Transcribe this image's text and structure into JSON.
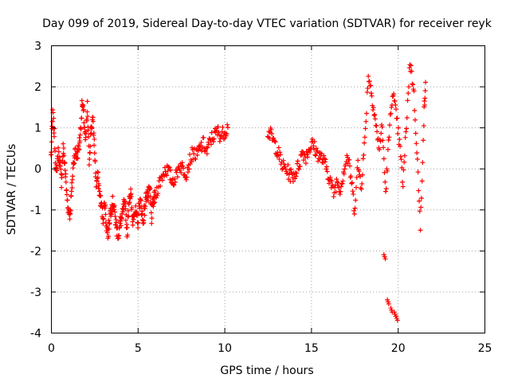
{
  "chart_data": {
    "type": "scatter",
    "title": "Day 099 of 2019, Sidereal Day-to-day VTEC variation (SDTVAR) for receiver reyk",
    "xlabel": "GPS time / hours",
    "ylabel": "SDTVAR / TECUs",
    "xlim": [
      0,
      25
    ],
    "ylim": [
      -4,
      3
    ],
    "xticks": [
      "0",
      "5",
      "10",
      "15",
      "20",
      "25"
    ],
    "yticks": [
      "-4",
      "-3",
      "-2",
      "-1",
      "0",
      "1",
      "2",
      "3"
    ],
    "grid": true,
    "marker": "+",
    "color": "#ff0000",
    "series": [
      {
        "name": "SDTVAR",
        "x": [
          0.0,
          0.1,
          0.2,
          0.3,
          0.4,
          0.5,
          0.6,
          0.7,
          0.8,
          0.9,
          1.0,
          1.1,
          1.2,
          1.3,
          1.4,
          1.5,
          1.6,
          1.7,
          1.8,
          1.9,
          2.0,
          2.1,
          2.2,
          2.3,
          2.4,
          2.5,
          2.6,
          2.7,
          2.8,
          2.9,
          3.0,
          3.1,
          3.2,
          3.3,
          3.4,
          3.5,
          3.6,
          3.7,
          3.8,
          3.9,
          4.0,
          4.1,
          4.2,
          4.3,
          4.4,
          4.5,
          4.6,
          4.7,
          4.8,
          4.9,
          5.0,
          5.1,
          5.2,
          5.3,
          5.4,
          5.5,
          5.6,
          5.7,
          5.8,
          5.9,
          6.0,
          6.2,
          6.4,
          6.6,
          6.8,
          7.0,
          7.2,
          7.4,
          7.6,
          7.8,
          8.0,
          8.2,
          8.4,
          8.6,
          8.8,
          9.0,
          9.2,
          9.4,
          9.6,
          9.8,
          10.0,
          10.2,
          12.5,
          12.7,
          12.9,
          13.1,
          13.3,
          13.5,
          13.7,
          13.9,
          14.1,
          14.3,
          14.5,
          14.7,
          14.9,
          15.1,
          15.3,
          15.5,
          15.7,
          15.9,
          16.1,
          16.3,
          16.5,
          16.7,
          16.9,
          17.1,
          17.3,
          17.5,
          17.7,
          17.9,
          18.1,
          18.3,
          18.5,
          18.7,
          18.9,
          19.1,
          19.3,
          19.5,
          19.7,
          19.9,
          20.1,
          20.3,
          20.5,
          20.7,
          20.9,
          21.1,
          21.3,
          21.5,
          21.6
        ],
        "y": [
          0.3,
          1.3,
          0.8,
          -0.2,
          0.4,
          0.2,
          -0.3,
          0.5,
          0.1,
          -0.6,
          -1.0,
          -1.1,
          -0.5,
          0.2,
          0.4,
          0.3,
          0.5,
          0.9,
          1.6,
          1.2,
          0.6,
          1.5,
          0.2,
          0.9,
          1.2,
          0.6,
          -0.4,
          -0.2,
          -0.6,
          -0.9,
          -1.2,
          -0.8,
          -1.4,
          -1.6,
          -1.1,
          -0.9,
          -0.8,
          -1.2,
          -1.5,
          -1.6,
          -1.3,
          -1.2,
          -0.9,
          -1.0,
          -1.6,
          -0.7,
          -0.6,
          -1.3,
          -1.0,
          -1.1,
          -1.4,
          -0.8,
          -0.9,
          -1.3,
          -1.0,
          -0.6,
          -0.7,
          -0.5,
          -1.2,
          -0.8,
          -0.7,
          -0.4,
          -0.2,
          0.0,
          -0.1,
          -0.3,
          -0.2,
          0.1,
          0.0,
          -0.1,
          0.2,
          0.4,
          0.3,
          0.5,
          0.6,
          0.4,
          0.7,
          0.8,
          0.9,
          0.8,
          0.9,
          1.0,
          0.9,
          0.8,
          0.6,
          0.4,
          0.1,
          0.0,
          -0.1,
          -0.2,
          -0.1,
          0.1,
          0.4,
          0.3,
          0.5,
          0.6,
          0.4,
          0.3,
          0.2,
          0.0,
          -0.3,
          -0.6,
          -0.3,
          -0.5,
          0.0,
          0.3,
          -0.2,
          -1.0,
          0.1,
          -0.4,
          0.7,
          2.3,
          1.8,
          1.2,
          0.5,
          1.0,
          -0.6,
          0.8,
          1.9,
          1.3,
          0.6,
          -0.4,
          1.1,
          2.6,
          2.0,
          0.5,
          -1.5,
          1.2,
          2.1
        ],
        "outliers": {
          "x": [
            19.2,
            19.4,
            19.6,
            19.8,
            19.9
          ],
          "y": [
            -2.1,
            -3.2,
            -3.4,
            -3.5,
            -3.6
          ]
        }
      }
    ]
  }
}
